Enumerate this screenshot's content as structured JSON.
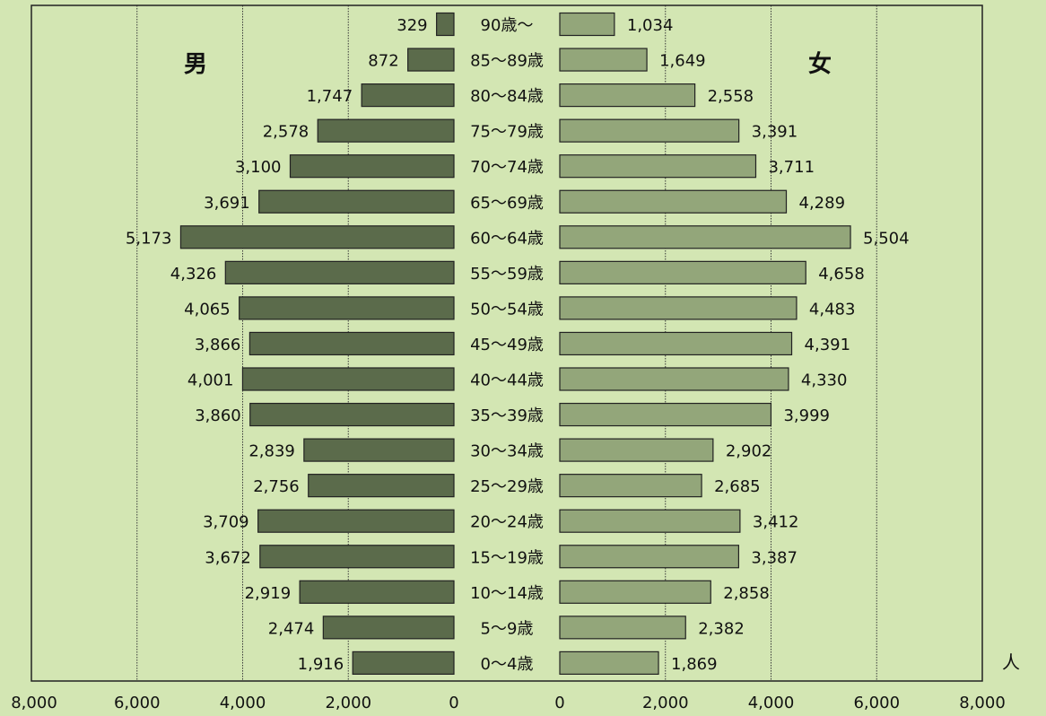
{
  "chart_data": {
    "type": "bar",
    "orientation": "horizontal",
    "layout": "population-pyramid",
    "categories": [
      "90歳～",
      "85～89歳",
      "80～84歳",
      "75～79歳",
      "70～74歳",
      "65～69歳",
      "60～64歳",
      "55～59歳",
      "50～54歳",
      "45～49歳",
      "40～44歳",
      "35～39歳",
      "30～34歳",
      "25～29歳",
      "20～24歳",
      "15～19歳",
      "10～14歳",
      "5～9歳",
      "0～4歳"
    ],
    "series": [
      {
        "name": "男",
        "side": "left",
        "color": "#5b6b4b",
        "values": [
          329,
          872,
          1747,
          2578,
          3100,
          3691,
          5173,
          4326,
          4065,
          3866,
          4001,
          3860,
          2839,
          2756,
          3709,
          3672,
          2919,
          2474,
          1916
        ],
        "labels": [
          "329",
          "872",
          "1,747",
          "2,578",
          "3,100",
          "3,691",
          "5,173",
          "4,326",
          "4,065",
          "3,866",
          "4,001",
          "3,860",
          "2,839",
          "2,756",
          "3,709",
          "3,672",
          "2,919",
          "2,474",
          "1,916"
        ]
      },
      {
        "name": "女",
        "side": "right",
        "color": "#93a67a",
        "values": [
          1034,
          1649,
          2558,
          3391,
          3711,
          4289,
          5504,
          4658,
          4483,
          4391,
          4330,
          3999,
          2902,
          2685,
          3412,
          3387,
          2858,
          2382,
          1869
        ],
        "labels": [
          "1,034",
          "1,649",
          "2,558",
          "3,391",
          "3,711",
          "4,289",
          "5,504",
          "4,658",
          "4,483",
          "4,391",
          "4,330",
          "3,999",
          "2,902",
          "2,685",
          "3,412",
          "3,387",
          "2,858",
          "2,382",
          "1,869"
        ]
      }
    ],
    "xlim": [
      0,
      8000
    ],
    "xticks": [
      0,
      2000,
      4000,
      6000,
      8000
    ],
    "xtick_labels_left": [
      "0",
      "2,000",
      "4,000",
      "6,000",
      "8,000"
    ],
    "xtick_labels_right": [
      "0",
      "2,000",
      "4,000",
      "6,000",
      "8,000"
    ],
    "unit_label": "人",
    "grid": true
  }
}
